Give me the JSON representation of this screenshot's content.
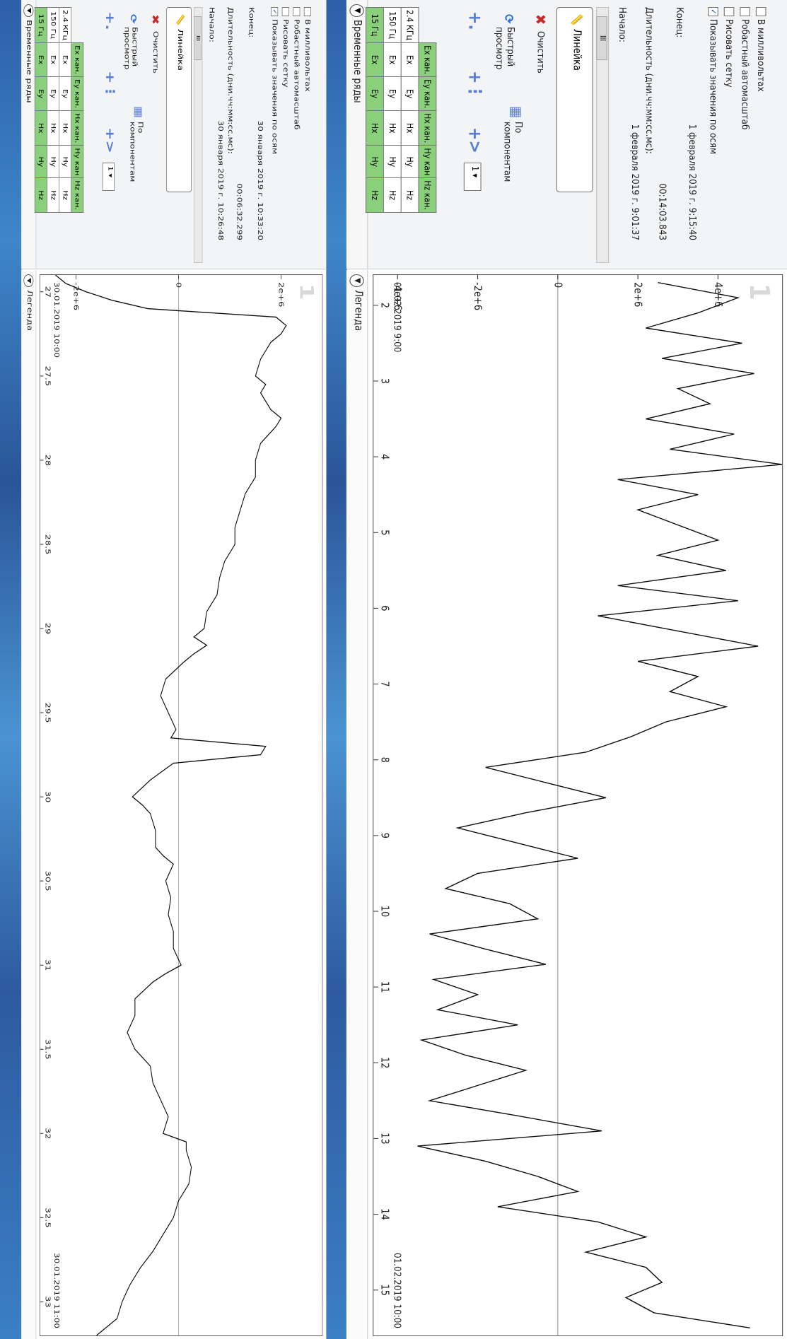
{
  "panels": [
    {
      "sidebar": {
        "header": "Временные ряды",
        "channels": {
          "headers": [
            "Ex кан.",
            "Ey кан.",
            "Hx кан.",
            "Hy кан",
            "Hz кан."
          ],
          "rows": [
            {
              "freq": "2.4 КГц",
              "cells": [
                "Ex",
                "Ey",
                "Hx",
                "Hy",
                "Hz"
              ],
              "green": false
            },
            {
              "freq": "150 Гц",
              "cells": [
                "Ex",
                "Ey",
                "Hx",
                "Hy",
                "Hz"
              ],
              "green": false
            },
            {
              "freq": "15 Гц",
              "cells": [
                "Ex",
                "Ey",
                "Hx",
                "Hy",
                "Hz"
              ],
              "green": true
            }
          ]
        },
        "quick_view": "Быстрый просмотр",
        "by_components": "По компонентам",
        "clear": "Очистить",
        "select_value": "1",
        "ruler": "Линейка",
        "start_label": "Начало:",
        "start_value": "30 января 2019 г. 10:26:48",
        "duration_label": "Длительность (дни.чч:мм:сс.мс):",
        "duration_value": "00:06:32.299",
        "end_label": "Конец:",
        "end_value": "30 января 2019 г. 10:33:20",
        "checkboxes": [
          {
            "label": "Показывать значения по осям",
            "checked": true
          },
          {
            "label": "Рисовать сетку",
            "checked": false
          },
          {
            "label": "Робастный автомасштаб",
            "checked": false
          },
          {
            "label": "В милливольтах",
            "checked": false
          }
        ]
      },
      "legend": "Легенда",
      "plot_number": "1",
      "chart_data": {
        "type": "line",
        "x_ticks": [
          "27",
          "27.5",
          "28",
          "28.5",
          "29",
          "29.5",
          "30",
          "30.5",
          "31",
          "31.5",
          "32",
          "32.5",
          "33"
        ],
        "xlim": [
          26.9,
          33.2
        ],
        "y_ticks": [
          "2e+6",
          "0",
          "-2e+6"
        ],
        "ylim": [
          -2.7,
          2.8
        ],
        "date_start": "30.01.2019 10:00",
        "date_end": "30.01.2019 11:00",
        "x": [
          26.9,
          26.95,
          27.0,
          27.05,
          27.1,
          27.15,
          27.2,
          27.25,
          27.3,
          27.4,
          27.5,
          27.55,
          27.6,
          27.7,
          27.75,
          27.8,
          27.9,
          28.0,
          28.1,
          28.2,
          28.3,
          28.4,
          28.5,
          28.6,
          28.7,
          28.8,
          28.9,
          29.0,
          29.05,
          29.1,
          29.15,
          29.2,
          29.3,
          29.4,
          29.5,
          29.6,
          29.65,
          29.7,
          29.75,
          29.8,
          29.9,
          30.0,
          30.05,
          30.1,
          30.2,
          30.3,
          30.35,
          30.4,
          30.5,
          30.6,
          30.7,
          30.8,
          30.9,
          31.0,
          31.05,
          31.1,
          31.2,
          31.3,
          31.4,
          31.5,
          31.6,
          31.7,
          31.8,
          31.9,
          32.0,
          32.05,
          32.1,
          32.2,
          32.3,
          32.4,
          32.5,
          32.6,
          32.7,
          32.8,
          32.9,
          33.0,
          33.1,
          33.2
        ],
        "y": [
          -2.4,
          -2.2,
          -1.8,
          -1.3,
          -0.6,
          1.9,
          2.1,
          2.0,
          1.8,
          1.6,
          1.5,
          1.7,
          1.6,
          1.8,
          2.0,
          1.9,
          1.6,
          1.5,
          1.5,
          1.3,
          1.2,
          1.1,
          1.1,
          0.9,
          0.8,
          0.75,
          0.55,
          0.5,
          0.3,
          0.55,
          0.3,
          0.1,
          -0.25,
          -0.35,
          -0.2,
          -0.05,
          -0.15,
          1.7,
          1.6,
          -0.1,
          -0.55,
          -0.9,
          -0.7,
          -0.55,
          -0.45,
          -0.45,
          -0.3,
          -0.1,
          -0.25,
          -0.15,
          -0.2,
          -0.1,
          -0.1,
          0.05,
          -0.25,
          -0.5,
          -0.85,
          -0.85,
          -1.0,
          -0.85,
          -0.55,
          -0.5,
          -0.35,
          -0.2,
          -0.3,
          0.15,
          0.15,
          0.25,
          0.2,
          -0.0,
          -0.1,
          -0.3,
          -0.5,
          -0.75,
          -0.95,
          -1.1,
          -1.2,
          -1.6
        ]
      }
    },
    {
      "sidebar": {
        "header": "Временные ряды",
        "channels": {
          "headers": [
            "Ex кан.",
            "Ey кан.",
            "Hx кан.",
            "Hy кан",
            "Hz кан."
          ],
          "rows": [
            {
              "freq": "2.4 КГц",
              "cells": [
                "Ex",
                "Ey",
                "Hx",
                "Hy",
                "Hz"
              ],
              "green": false
            },
            {
              "freq": "150 Гц",
              "cells": [
                "Ex",
                "Ey",
                "Hx",
                "Hy",
                "Hz"
              ],
              "green": false
            },
            {
              "freq": "15 Гц",
              "cells": [
                "Ex",
                "Ey",
                "Hx",
                "Hy",
                "Hz"
              ],
              "green": true
            }
          ]
        },
        "quick_view": "Быстрый просмотр",
        "by_components": "По компонентам",
        "clear": "Очистить",
        "select_value": "1",
        "ruler": "Линейка",
        "start_label": "Начало:",
        "start_value": "1 февраля 2019 г. 9:01:37",
        "duration_label": "Длительность (дни.чч:мм:сс.мс):",
        "duration_value": "00:14:03.843",
        "end_label": "Конец:",
        "end_value": "1 февраля 2019 г. 9:15:40",
        "checkboxes": [
          {
            "label": "Показывать значения по осям",
            "checked": true
          },
          {
            "label": "Рисовать сетку",
            "checked": false
          },
          {
            "label": "Робастный автомасштаб",
            "checked": false
          },
          {
            "label": "В милливольтах",
            "checked": false
          }
        ]
      },
      "legend": "Легенда",
      "plot_number": "1",
      "chart_data": {
        "type": "line",
        "x_ticks": [
          "2",
          "3",
          "4",
          "5",
          "6",
          "7",
          "8",
          "9",
          "10",
          "11",
          "12",
          "13",
          "14",
          "15"
        ],
        "xlim": [
          1.6,
          15.6
        ],
        "y_ticks": [
          "4e+6",
          "2e+6",
          "0",
          "-2e+6",
          "-4e+6"
        ],
        "ylim": [
          -4.6,
          5.6
        ],
        "date_start": "01.02.2019 9:00",
        "date_end": "01.02.2019 10:00",
        "x": [
          1.7,
          1.9,
          2.1,
          2.3,
          2.5,
          2.7,
          2.9,
          3.1,
          3.3,
          3.5,
          3.7,
          3.9,
          4.1,
          4.3,
          4.5,
          4.7,
          4.9,
          5.1,
          5.3,
          5.5,
          5.7,
          5.9,
          6.1,
          6.3,
          6.5,
          6.7,
          6.9,
          7.1,
          7.3,
          7.5,
          7.7,
          7.9,
          8.1,
          8.3,
          8.5,
          8.7,
          8.9,
          9.1,
          9.3,
          9.5,
          9.7,
          9.9,
          10.1,
          10.3,
          10.5,
          10.7,
          10.9,
          11.1,
          11.3,
          11.5,
          11.7,
          11.9,
          12.1,
          12.3,
          12.5,
          12.7,
          12.9,
          13.1,
          13.3,
          13.5,
          13.7,
          13.9,
          14.1,
          14.3,
          14.5,
          14.7,
          14.9,
          15.1,
          15.3,
          15.5
        ],
        "y": [
          2.5,
          4.5,
          3.5,
          2.2,
          4.6,
          2.6,
          4.9,
          3.0,
          3.8,
          2.2,
          4.4,
          2.8,
          5.6,
          1.5,
          3.5,
          2.0,
          3.0,
          4.0,
          2.5,
          4.2,
          1.5,
          4.5,
          1.0,
          3.0,
          5.0,
          2.0,
          3.5,
          2.8,
          4.2,
          2.7,
          1.8,
          0.7,
          -1.8,
          -0.3,
          1.2,
          -0.8,
          -2.5,
          -1.0,
          0.5,
          -2.0,
          -2.8,
          -1.2,
          -0.5,
          -3.2,
          -1.8,
          -0.3,
          -3.1,
          -2.0,
          -3.0,
          -1.0,
          -3.4,
          -2.3,
          -0.8,
          -2.0,
          -3.2,
          -1.0,
          1.1,
          -3.5,
          -1.8,
          -0.5,
          0.5,
          -1.5,
          1.0,
          2.2,
          0.7,
          2.2,
          2.6,
          1.7,
          2.4,
          4.8
        ]
      }
    }
  ]
}
